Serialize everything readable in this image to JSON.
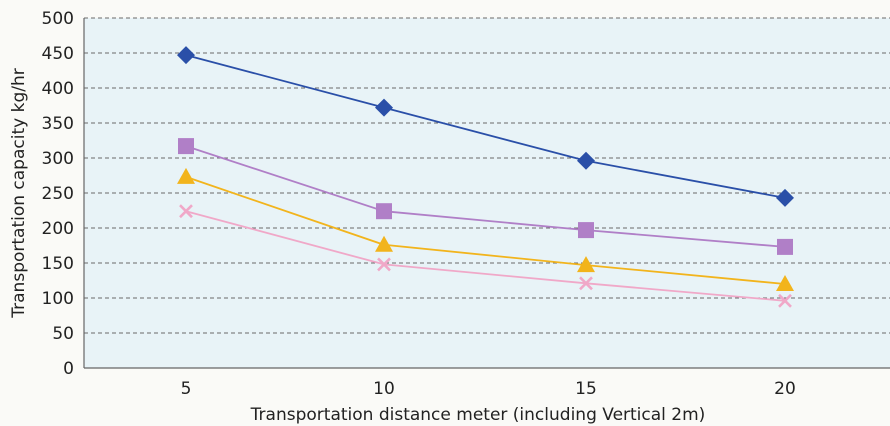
{
  "chart_data": {
    "type": "line",
    "xlabel": "Transportation distance meter (including Vertical 2m)",
    "ylabel": "Transportation capacity   kg/hr",
    "categories": [
      "5",
      "10",
      "15",
      "20"
    ],
    "ylim": [
      0,
      500
    ],
    "yticks": [
      "0",
      "50",
      "100",
      "150",
      "200",
      "250",
      "300",
      "350",
      "400",
      "450",
      "500"
    ],
    "grid": true,
    "series": [
      {
        "marker": "diamond",
        "color": "#2a4fa8",
        "values": [
          447,
          372,
          296,
          243
        ]
      },
      {
        "marker": "square",
        "color": "#b07fc7",
        "values": [
          317,
          224,
          197,
          173
        ]
      },
      {
        "marker": "triangle",
        "color": "#f2b41c",
        "values": [
          273,
          176,
          147,
          120
        ]
      },
      {
        "marker": "x",
        "color": "#f0a8c8",
        "values": [
          224,
          148,
          121,
          96
        ]
      }
    ]
  }
}
